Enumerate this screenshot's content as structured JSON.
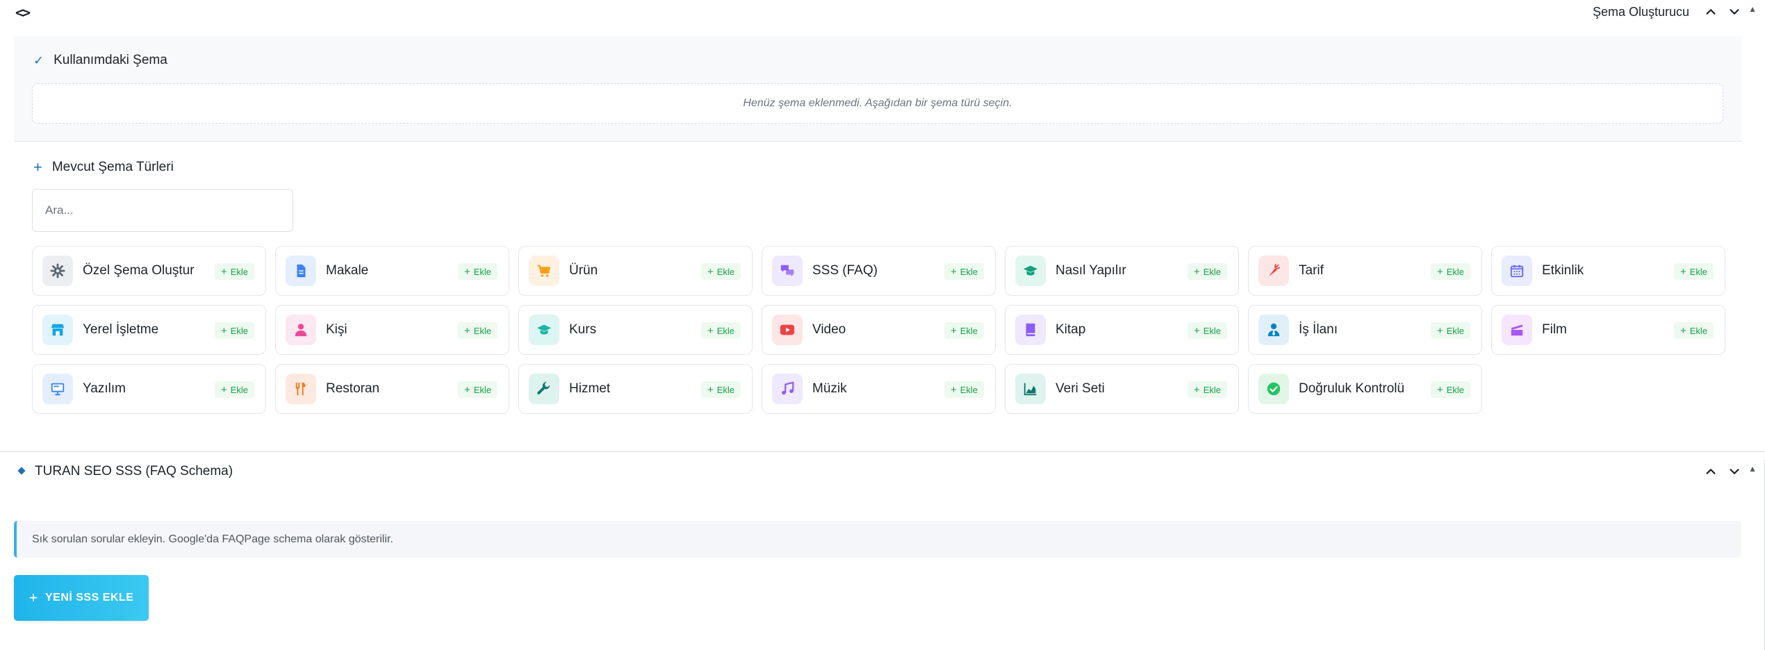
{
  "panel1": {
    "title": "Şema Oluşturucu",
    "icon": "code-icon"
  },
  "used": {
    "title": "Kullanımdaki Şema",
    "empty_text": "Henüz şema eklenmedi. Aşağıdan bir şema türü seçin."
  },
  "available": {
    "title": "Mevcut Şema Türleri",
    "search_placeholder": "Ara...",
    "add_label": "Ekle",
    "types": [
      {
        "label": "Özel Şema Oluştur",
        "icon": "gear-icon",
        "bg": "#eceef1",
        "fg": "#5b6470"
      },
      {
        "label": "Makale",
        "icon": "document-icon",
        "bg": "#e5eefd",
        "fg": "#3b82f6"
      },
      {
        "label": "Ürün",
        "icon": "cart-icon",
        "bg": "#fef1e2",
        "fg": "#f59e0b"
      },
      {
        "label": "SSS (FAQ)",
        "icon": "chat-icon",
        "bg": "#efe9fd",
        "fg": "#8b5cf6"
      },
      {
        "label": "Nasıl Yapılır",
        "icon": "graduation-cap-icon",
        "bg": "#e1f6ef",
        "fg": "#10a27a"
      },
      {
        "label": "Tarif",
        "icon": "carrot-icon",
        "bg": "#fde6e6",
        "fg": "#ef4444"
      },
      {
        "label": "Etkinlik",
        "icon": "calendar-icon",
        "bg": "#e9ecfc",
        "fg": "#6366f1"
      },
      {
        "label": "Yerel İşletme",
        "icon": "store-icon",
        "bg": "#e1f3fb",
        "fg": "#0ea5e9"
      },
      {
        "label": "Kişi",
        "icon": "user-icon",
        "bg": "#fce8f1",
        "fg": "#ec4899"
      },
      {
        "label": "Kurs",
        "icon": "graduation-cap-icon",
        "bg": "#ddf5f3",
        "fg": "#14b8a6"
      },
      {
        "label": "Video",
        "icon": "youtube-icon",
        "bg": "#fde6e6",
        "fg": "#ef4444"
      },
      {
        "label": "Kitap",
        "icon": "book-icon",
        "bg": "#efe9fd",
        "fg": "#8b5cf6"
      },
      {
        "label": "İş İlanı",
        "icon": "user-tie-icon",
        "bg": "#e1f0f8",
        "fg": "#0284c7"
      },
      {
        "label": "Film",
        "icon": "film-icon",
        "bg": "#f5e6fb",
        "fg": "#a855f7"
      },
      {
        "label": "Yazılım",
        "icon": "monitor-icon",
        "bg": "#e5eefd",
        "fg": "#3b82f6"
      },
      {
        "label": "Restoran",
        "icon": "utensils-icon",
        "bg": "#fde9df",
        "fg": "#f97316"
      },
      {
        "label": "Hizmet",
        "icon": "wrench-icon",
        "bg": "#def2ee",
        "fg": "#0f766e"
      },
      {
        "label": "Müzik",
        "icon": "music-icon",
        "bg": "#efe9fd",
        "fg": "#8b5cf6"
      },
      {
        "label": "Veri Seti",
        "icon": "chart-area-icon",
        "bg": "#def2ee",
        "fg": "#0f766e"
      },
      {
        "label": "Doğruluk Kontrolü",
        "icon": "check-circle-icon",
        "bg": "#e2f6e8",
        "fg": "#22c55e"
      }
    ]
  },
  "panel2": {
    "title": "TURAN SEO SSS (FAQ Schema)",
    "info_text": "Sık sorulan sorular ekleyin. Google'da FAQPage schema olarak gösterilir.",
    "add_button_label": "YENİ SSS EKLE"
  }
}
